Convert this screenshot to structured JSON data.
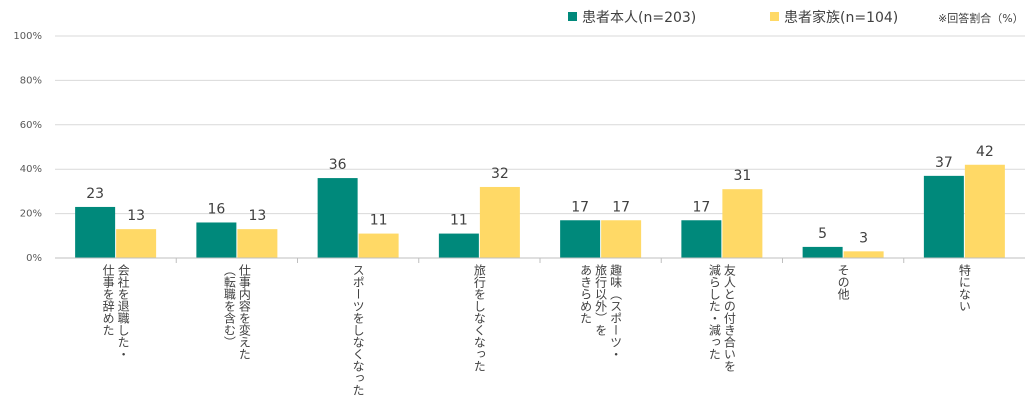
{
  "chart_data": {
    "type": "bar",
    "note": "※回答割合（%）",
    "yticks": [
      "0%",
      "20%",
      "40%",
      "60%",
      "80%",
      "100%"
    ],
    "ylim": [
      0,
      100
    ],
    "colors": {
      "patient": "#00897B",
      "family": "#FFD966",
      "axis": "#BFBFBF",
      "grid": "#D9D9D9"
    },
    "series": [
      {
        "name": "患者本人(n=203)",
        "values": [
          23,
          16,
          36,
          11,
          17,
          17,
          5,
          37
        ]
      },
      {
        "name": "患者家族(n=104)",
        "values": [
          13,
          13,
          11,
          32,
          17,
          31,
          3,
          42
        ]
      }
    ],
    "categories": [
      [
        "会社を退職した・",
        "仕事を辞めた"
      ],
      [
        "仕事内容を変えた",
        "（転職を含む）"
      ],
      [
        "スポーツをしなくなった"
      ],
      [
        "旅行をしなくなった"
      ],
      [
        "趣味（スポーツ・",
        "旅行以外）を",
        "あきらめた"
      ],
      [
        "友人との付き合いを",
        "減らした・減った"
      ],
      [
        "その他"
      ],
      [
        "特にない"
      ]
    ]
  }
}
